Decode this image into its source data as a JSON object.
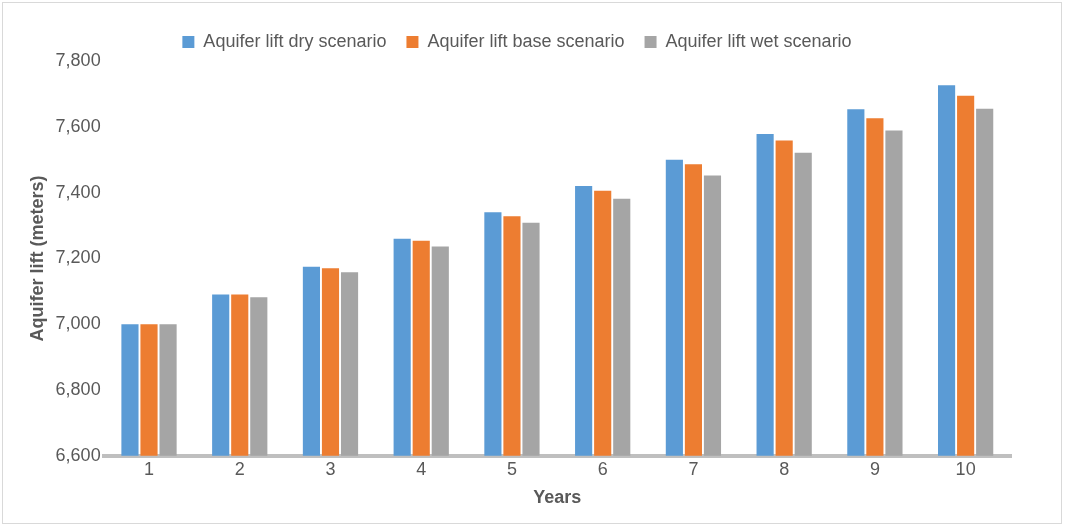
{
  "chart_data": {
    "type": "bar",
    "xlabel": "Years",
    "ylabel": "Aquifer lift (meters)",
    "categories": [
      "1",
      "2",
      "3",
      "4",
      "5",
      "6",
      "7",
      "8",
      "9",
      "10"
    ],
    "series": [
      {
        "name": "Aquifer lift dry scenario",
        "color": "#5b9bd5",
        "values": [
          7000,
          7090,
          7175,
          7260,
          7340,
          7420,
          7500,
          7578,
          7653,
          7726
        ]
      },
      {
        "name": "Aquifer lift base scenario",
        "color": "#ed7d31",
        "values": [
          7000,
          7090,
          7170,
          7254,
          7328,
          7406,
          7486,
          7558,
          7626,
          7694
        ]
      },
      {
        "name": "Aquifer lift wet scenario",
        "color": "#a5a5a5",
        "values": [
          7000,
          7082,
          7158,
          7236,
          7308,
          7381,
          7452,
          7521,
          7589,
          7655
        ]
      }
    ],
    "ylim": [
      6600,
      7800
    ],
    "yticks": [
      {
        "value": 6600,
        "label": "6,600"
      },
      {
        "value": 6800,
        "label": "6,800"
      },
      {
        "value": 7000,
        "label": "7,000"
      },
      {
        "value": 7200,
        "label": "7,200"
      },
      {
        "value": 7400,
        "label": "7,400"
      },
      {
        "value": 7600,
        "label": "7,600"
      },
      {
        "value": 7800,
        "label": "7,800"
      }
    ],
    "grid": false,
    "legend": "top"
  }
}
